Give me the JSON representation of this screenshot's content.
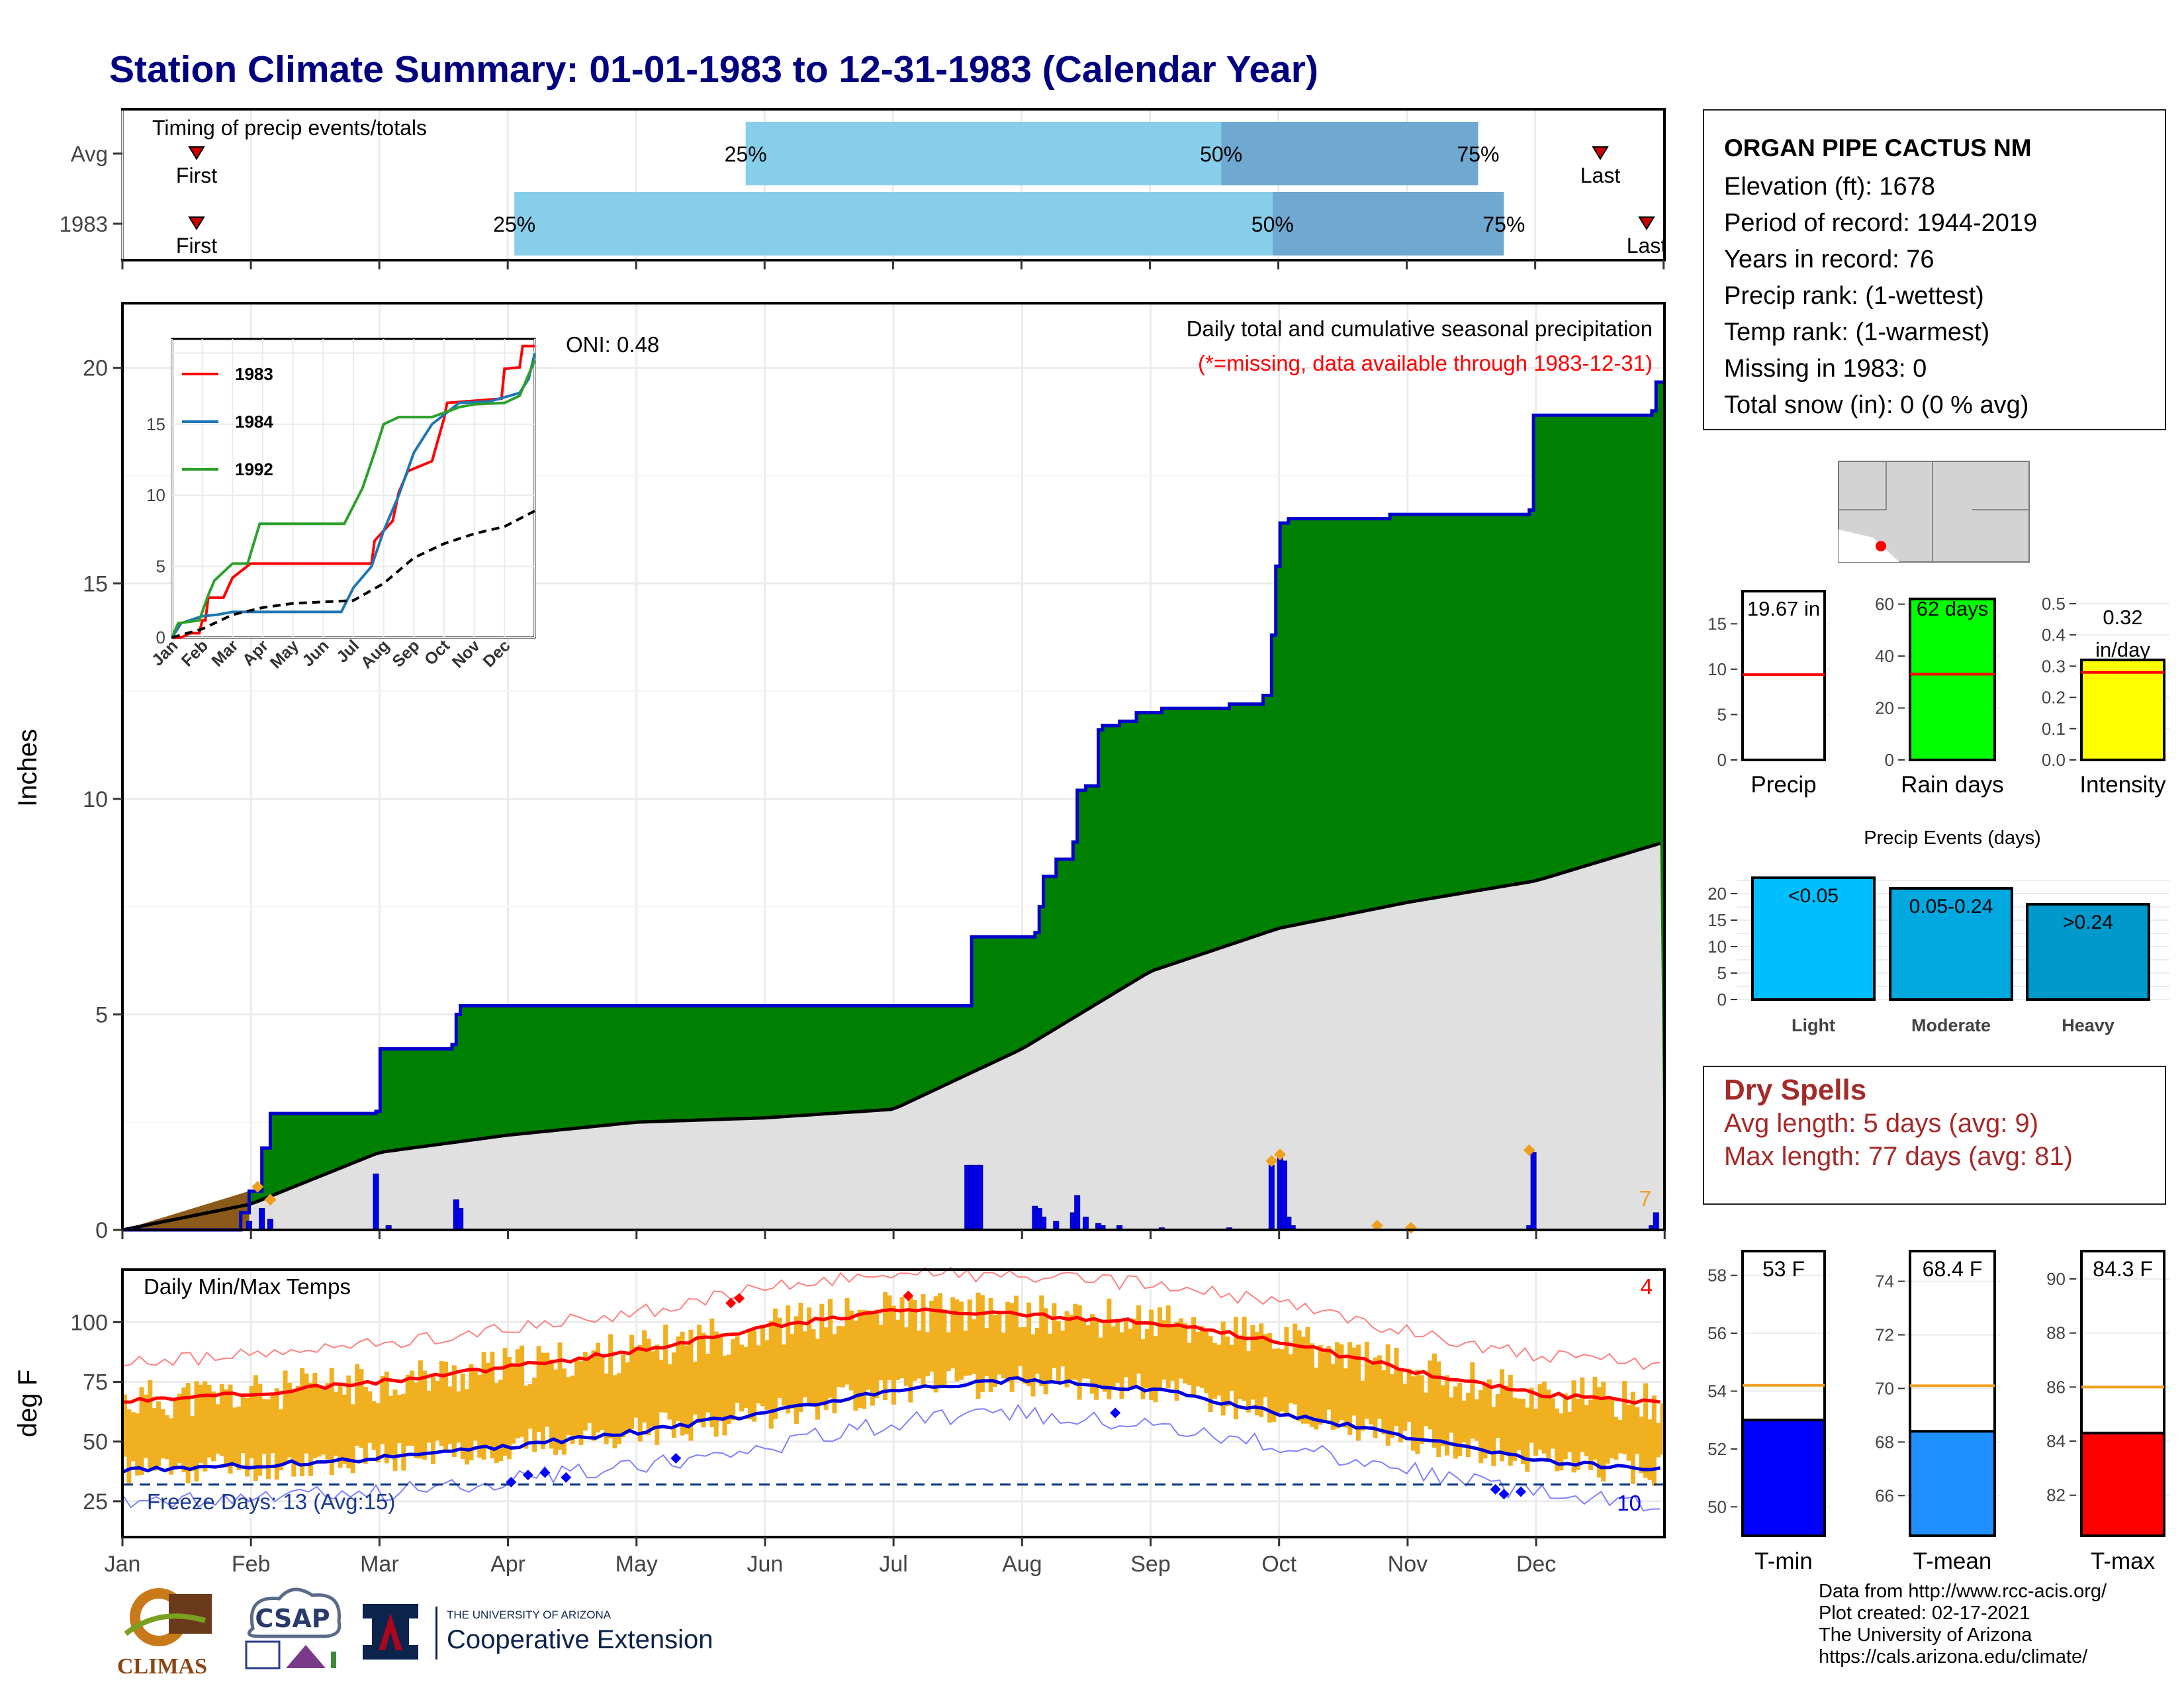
{
  "title": "Station Climate Summary: 01-01-1983 to 12-31-1983 (Calendar Year)",
  "colors": {
    "title": "#000080",
    "precip_green": "#008000",
    "normal_gray": "#e0e0e0",
    "daily_bar": "#0000ee",
    "temp_bar": "#f0b020",
    "tmax_line": "#ff0000",
    "tmin_line": "#0000dd",
    "quartile_light": "#87ceeb",
    "quartile_dark": "#6fa8d0",
    "dry_spells": "#a52a2a",
    "missing_note": "#ff0000"
  },
  "timing": {
    "panel_label": "Timing of precip events/totals",
    "rows": [
      {
        "label": "Avg",
        "first_label": "First",
        "last_label": "Last",
        "q25": "25%",
        "q50": "50%",
        "q75": "75%"
      },
      {
        "label": "1983",
        "first_label": "First",
        "last_label": "Last",
        "q25": "25%",
        "q50": "50%",
        "q75": "75%"
      }
    ]
  },
  "precip_panel": {
    "ylabel": "Inches",
    "oni": "ONI: 0.48",
    "subtitle": "Daily total and cumulative seasonal precipitation",
    "missing_note": "(*=missing, data available through 1983-12-31)",
    "corner_value": "7",
    "yticks": [
      "0",
      "5",
      "10",
      "15",
      "20"
    ]
  },
  "inset": {
    "legend": [
      "1983",
      "1984",
      "1992"
    ],
    "legend_colors": [
      "#ff0000",
      "#1f77b4",
      "#2ca02c"
    ],
    "yticks": [
      "0",
      "5",
      "10",
      "15"
    ],
    "xticks": [
      "Jan",
      "Feb",
      "Mar",
      "Apr",
      "May",
      "Jun",
      "Jul",
      "Aug",
      "Sep",
      "Oct",
      "Nov",
      "Dec"
    ]
  },
  "temp_panel": {
    "ylabel": "deg F",
    "label": "Daily Min/Max Temps",
    "freeze": "Freeze Days: 13 (Avg:15)",
    "hot_count": "4",
    "freeze_count": "10",
    "yticks": [
      "25",
      "50",
      "75",
      "100"
    ]
  },
  "months": [
    "Jan",
    "Feb",
    "Mar",
    "Apr",
    "May",
    "Jun",
    "Jul",
    "Aug",
    "Sep",
    "Oct",
    "Nov",
    "Dec"
  ],
  "station": {
    "name": "ORGAN PIPE CACTUS NM",
    "lines": [
      "Elevation (ft): 1678",
      "Period of record: 1944-2019",
      "Years in record: 76",
      "Precip rank:  (1-wettest)",
      "Temp rank:  (1-warmest)",
      "Missing in 1983: 0",
      "Total snow (in): 0 (0 % avg)"
    ]
  },
  "mini_bars": [
    {
      "label": "Precip",
      "value_text": "19.67 in",
      "yticks": [
        "0",
        "5",
        "10",
        "15"
      ]
    },
    {
      "label": "Rain days",
      "value_text": "62 days",
      "yticks": [
        "0",
        "20",
        "40",
        "60"
      ]
    },
    {
      "label": "Intensity",
      "value_text_1": "0.32",
      "value_text_2": "in/day",
      "yticks": [
        "0.0",
        "0.1",
        "0.2",
        "0.3",
        "0.4",
        "0.5"
      ]
    }
  ],
  "events": {
    "title": "Precip Events (days)",
    "categories": [
      "Light",
      "Moderate",
      "Heavy"
    ],
    "bar_labels": [
      "<0.05",
      "0.05-0.24",
      ">0.24"
    ],
    "yticks": [
      "0",
      "5",
      "10",
      "15",
      "20"
    ]
  },
  "dry_spells": {
    "title": "Dry Spells",
    "avg": "Avg length: 5 days (avg: 9)",
    "max": "Max length: 77 days (avg: 81)"
  },
  "temp_bars": [
    {
      "label": "T-min",
      "value_text": "53 F",
      "yticks": [
        "50",
        "52",
        "54",
        "56",
        "58"
      ]
    },
    {
      "label": "T-mean",
      "value_text": "68.4 F",
      "yticks": [
        "66",
        "68",
        "70",
        "72",
        "74"
      ]
    },
    {
      "label": "T-max",
      "value_text": "84.3 F",
      "yticks": [
        "82",
        "84",
        "86",
        "88",
        "90"
      ]
    }
  ],
  "credits": [
    "Data from http://www.rcc-acis.org/",
    "Plot created: 02-17-2021",
    "The University of Arizona",
    "https://cals.arizona.edu/climate/"
  ],
  "logos": {
    "climas": "CLIMAS",
    "csap": "CSAP",
    "ua_small": "THE UNIVERSITY OF ARIZONA",
    "ua_big": "Cooperative Extension"
  },
  "chart_data": [
    {
      "type": "area",
      "name": "cumulative precipitation",
      "x_unit": "month",
      "x": [
        0,
        1,
        2,
        3,
        4,
        5,
        6,
        7,
        8,
        9,
        10,
        11,
        12
      ],
      "series": [
        {
          "name": "1983",
          "values": [
            0,
            0.5,
            2.8,
            4.2,
            5.2,
            5.2,
            5.2,
            6.8,
            10.2,
            12.5,
            16.5,
            16.8,
            19.67
          ]
        },
        {
          "name": "Avg",
          "values": [
            0,
            0.6,
            1.8,
            2.2,
            2.5,
            2.6,
            2.8,
            4.2,
            6.0,
            7.0,
            7.6,
            8.1,
            9.0
          ]
        }
      ],
      "ylim": [
        0,
        21.5
      ]
    },
    {
      "type": "bar",
      "name": "daily precipitation",
      "x_unit": "day of year",
      "x": [
        30,
        33,
        35,
        60,
        63,
        79,
        80,
        200,
        201,
        202,
        203,
        216,
        217,
        218,
        221,
        225,
        226,
        228,
        231,
        232,
        236,
        246,
        262,
        272,
        274,
        275,
        276,
        277,
        333,
        334,
        362,
        363
      ],
      "values": [
        0.2,
        0.5,
        0.25,
        1.3,
        0.1,
        0.7,
        0.5,
        1.5,
        1.5,
        1.5,
        1.5,
        0.55,
        0.5,
        0.3,
        0.2,
        0.4,
        0.8,
        0.3,
        0.15,
        0.1,
        0.1,
        0.05,
        0.05,
        1.5,
        1.7,
        1.6,
        0.3,
        0.1,
        0.1,
        1.8,
        0.1,
        0.4
      ]
    },
    {
      "type": "line",
      "name": "daily temperatures",
      "x_unit": "month",
      "x": [
        0,
        1,
        2,
        3,
        4,
        5,
        6,
        7,
        8,
        9,
        10,
        11,
        12
      ],
      "series": [
        {
          "name": "Tmax normal",
          "values": [
            67,
            70,
            75,
            81,
            88,
            98,
            105,
            103,
            100,
            92,
            80,
            70,
            66
          ]
        },
        {
          "name": "Tmin normal",
          "values": [
            38,
            40,
            43,
            48,
            54,
            62,
            72,
            76,
            72,
            62,
            52,
            42,
            38
          ]
        }
      ],
      "ylim": [
        10,
        122
      ]
    },
    {
      "type": "bar",
      "name": "precip events",
      "categories": [
        "Light",
        "Moderate",
        "Heavy"
      ],
      "values": [
        23,
        21,
        18
      ],
      "ylim": [
        0,
        25
      ]
    }
  ]
}
